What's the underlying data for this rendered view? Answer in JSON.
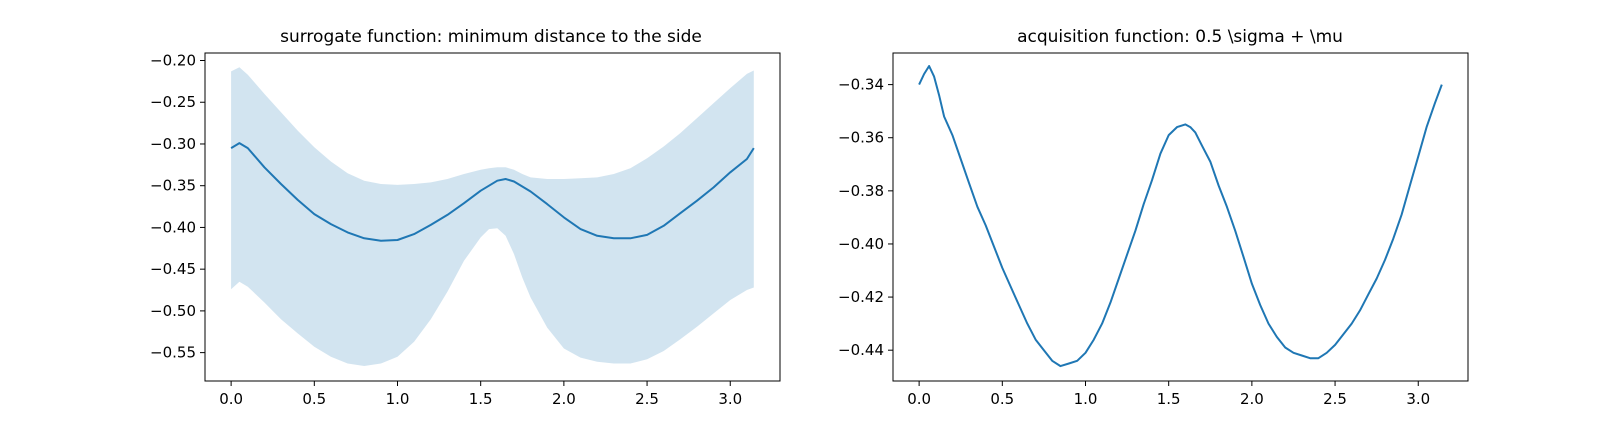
{
  "colors": {
    "line": "#1f77b4",
    "band": "#1f77b4",
    "axes": "#000000",
    "background": "#ffffff"
  },
  "chart_data": [
    {
      "type": "line",
      "title": "surrogate function: minimum distance to the side",
      "xlabel": "",
      "ylabel": "",
      "xlim": [
        -0.157,
        3.299
      ],
      "ylim": [
        -0.584,
        -0.191
      ],
      "xticks": [
        0.0,
        0.5,
        1.0,
        1.5,
        2.0,
        2.5,
        3.0
      ],
      "xtick_labels": [
        "0.0",
        "0.5",
        "1.0",
        "1.5",
        "2.0",
        "2.5",
        "3.0"
      ],
      "yticks": [
        -0.55,
        -0.5,
        -0.45,
        -0.4,
        -0.35,
        -0.3,
        -0.25,
        -0.2
      ],
      "ytick_labels": [
        "−0.55",
        "−0.50",
        "−0.45",
        "−0.40",
        "−0.35",
        "−0.30",
        "−0.25",
        "−0.20"
      ],
      "grid": false,
      "series": [
        {
          "kind": "mean",
          "x": [
            0.0,
            0.05,
            0.1,
            0.2,
            0.3,
            0.4,
            0.5,
            0.6,
            0.7,
            0.8,
            0.9,
            1.0,
            1.1,
            1.2,
            1.3,
            1.4,
            1.5,
            1.6,
            1.65,
            1.7,
            1.8,
            1.9,
            2.0,
            2.1,
            2.2,
            2.3,
            2.4,
            2.5,
            2.6,
            2.7,
            2.8,
            2.9,
            3.0,
            3.1,
            3.1416
          ],
          "y": [
            -0.305,
            -0.299,
            -0.305,
            -0.328,
            -0.348,
            -0.367,
            -0.384,
            -0.396,
            -0.406,
            -0.413,
            -0.416,
            -0.415,
            -0.408,
            -0.397,
            -0.385,
            -0.371,
            -0.356,
            -0.344,
            -0.342,
            -0.345,
            -0.357,
            -0.372,
            -0.388,
            -0.402,
            -0.41,
            -0.413,
            -0.413,
            -0.409,
            -0.398,
            -0.383,
            -0.368,
            -0.352,
            -0.334,
            -0.318,
            -0.305
          ]
        },
        {
          "kind": "band",
          "x": [
            0.0,
            0.05,
            0.1,
            0.2,
            0.3,
            0.4,
            0.5,
            0.6,
            0.7,
            0.8,
            0.9,
            1.0,
            1.1,
            1.2,
            1.3,
            1.4,
            1.5,
            1.55,
            1.6,
            1.65,
            1.7,
            1.75,
            1.8,
            1.9,
            2.0,
            2.1,
            2.2,
            2.3,
            2.4,
            2.5,
            2.6,
            2.7,
            2.8,
            2.9,
            3.0,
            3.1,
            3.1416
          ],
          "upper": [
            -0.213,
            -0.208,
            -0.217,
            -0.24,
            -0.262,
            -0.284,
            -0.304,
            -0.321,
            -0.335,
            -0.344,
            -0.348,
            -0.349,
            -0.348,
            -0.346,
            -0.342,
            -0.336,
            -0.331,
            -0.329,
            -0.328,
            -0.328,
            -0.331,
            -0.336,
            -0.34,
            -0.342,
            -0.342,
            -0.341,
            -0.34,
            -0.336,
            -0.329,
            -0.317,
            -0.303,
            -0.287,
            -0.269,
            -0.251,
            -0.233,
            -0.216,
            -0.212
          ],
          "lower": [
            -0.474,
            -0.465,
            -0.471,
            -0.49,
            -0.51,
            -0.527,
            -0.543,
            -0.555,
            -0.563,
            -0.566,
            -0.563,
            -0.555,
            -0.537,
            -0.51,
            -0.477,
            -0.44,
            -0.412,
            -0.402,
            -0.401,
            -0.41,
            -0.432,
            -0.46,
            -0.484,
            -0.52,
            -0.545,
            -0.556,
            -0.561,
            -0.563,
            -0.563,
            -0.558,
            -0.548,
            -0.534,
            -0.519,
            -0.503,
            -0.487,
            -0.475,
            -0.472
          ]
        }
      ]
    },
    {
      "type": "line",
      "title": "acquisition function: 0.5 \\sigma + \\mu",
      "xlabel": "",
      "ylabel": "",
      "xlim": [
        -0.157,
        3.299
      ],
      "ylim": [
        -0.4516,
        -0.3281
      ],
      "xticks": [
        0.0,
        0.5,
        1.0,
        1.5,
        2.0,
        2.5,
        3.0
      ],
      "xtick_labels": [
        "0.0",
        "0.5",
        "1.0",
        "1.5",
        "2.0",
        "2.5",
        "3.0"
      ],
      "yticks": [
        -0.44,
        -0.42,
        -0.4,
        -0.38,
        -0.36,
        -0.34
      ],
      "ytick_labels": [
        "−0.44",
        "−0.42",
        "−0.40",
        "−0.38",
        "−0.36",
        "−0.34"
      ],
      "grid": false,
      "series": [
        {
          "kind": "line",
          "x": [
            0.0,
            0.03,
            0.06,
            0.09,
            0.12,
            0.15,
            0.2,
            0.25,
            0.3,
            0.35,
            0.4,
            0.45,
            0.5,
            0.55,
            0.6,
            0.65,
            0.7,
            0.75,
            0.8,
            0.85,
            0.9,
            0.95,
            1.0,
            1.05,
            1.1,
            1.15,
            1.2,
            1.25,
            1.3,
            1.35,
            1.4,
            1.45,
            1.5,
            1.55,
            1.6,
            1.63,
            1.66,
            1.7,
            1.75,
            1.8,
            1.85,
            1.9,
            1.95,
            2.0,
            2.05,
            2.1,
            2.15,
            2.2,
            2.25,
            2.3,
            2.35,
            2.4,
            2.45,
            2.5,
            2.55,
            2.6,
            2.65,
            2.7,
            2.75,
            2.8,
            2.85,
            2.9,
            2.95,
            3.0,
            3.05,
            3.1,
            3.1416
          ],
          "y": [
            -0.34,
            -0.336,
            -0.333,
            -0.337,
            -0.344,
            -0.352,
            -0.359,
            -0.368,
            -0.377,
            -0.386,
            -0.393,
            -0.401,
            -0.409,
            -0.416,
            -0.423,
            -0.43,
            -0.436,
            -0.44,
            -0.444,
            -0.446,
            -0.445,
            -0.444,
            -0.441,
            -0.436,
            -0.43,
            -0.422,
            -0.413,
            -0.404,
            -0.395,
            -0.385,
            -0.376,
            -0.366,
            -0.359,
            -0.356,
            -0.355,
            -0.356,
            -0.358,
            -0.363,
            -0.369,
            -0.378,
            -0.386,
            -0.395,
            -0.405,
            -0.415,
            -0.423,
            -0.43,
            -0.435,
            -0.439,
            -0.441,
            -0.442,
            -0.443,
            -0.443,
            -0.441,
            -0.438,
            -0.434,
            -0.43,
            -0.425,
            -0.419,
            -0.413,
            -0.406,
            -0.398,
            -0.389,
            -0.378,
            -0.367,
            -0.356,
            -0.347,
            -0.34
          ]
        }
      ]
    }
  ]
}
